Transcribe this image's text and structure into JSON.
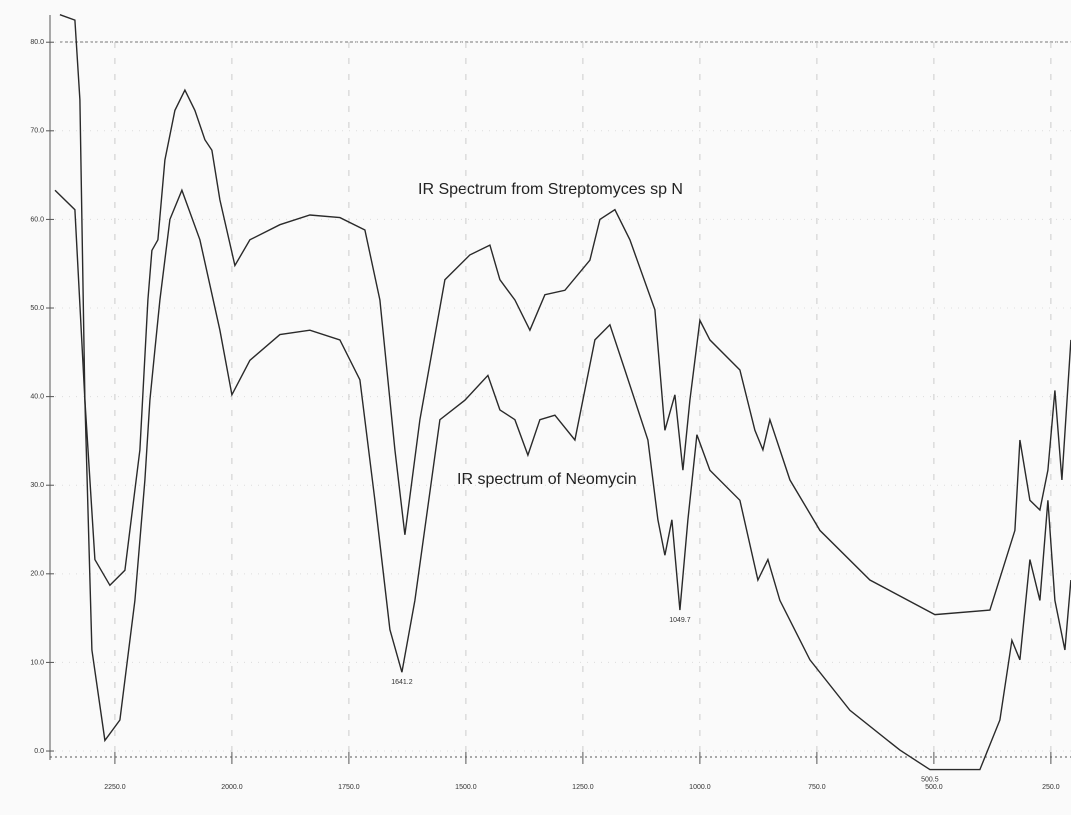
{
  "chart_data": {
    "type": "line",
    "annotations": [
      {
        "text": "IR Spectrum from Streptomyces sp N"
      },
      {
        "text": "IR spectrum of Neomycin"
      },
      {
        "text": "1641.2",
        "x": 1636.7,
        "y": 8.9
      },
      {
        "text": "1049.7",
        "x": 1042.7,
        "y": 15.9
      },
      {
        "text": "500.5",
        "x": 508.5,
        "y": -2.1
      }
    ],
    "xlim": [
      2378,
      207
    ],
    "ylim": [
      -3,
      83.5
    ],
    "xticks": [
      {
        "value": 2250,
        "label": "2250.0"
      },
      {
        "value": 2000,
        "label": "2000.0"
      },
      {
        "value": 1750,
        "label": "1750.0"
      },
      {
        "value": 1500,
        "label": "1500.0"
      },
      {
        "value": 1250,
        "label": "1250.0"
      },
      {
        "value": 1000,
        "label": "1000.0"
      },
      {
        "value": 750,
        "label": "750.0"
      },
      {
        "value": 500,
        "label": "500.0"
      },
      {
        "value": 250,
        "label": "250.0"
      }
    ],
    "yticks": [
      {
        "value": 0,
        "label": "0.0"
      },
      {
        "value": 10,
        "label": "10.0"
      },
      {
        "value": 20,
        "label": "20.0"
      },
      {
        "value": 30,
        "label": "30.0"
      },
      {
        "value": 40,
        "label": "40.0"
      },
      {
        "value": 50,
        "label": "50.0"
      },
      {
        "value": 60,
        "label": "60.0"
      },
      {
        "value": 70,
        "label": "70.0"
      },
      {
        "value": 80,
        "label": "80.0"
      }
    ],
    "grid": true,
    "color": "#2a2a2a",
    "series": [
      {
        "x": [
          2378,
          2335.5,
          2314.1,
          2292.7,
          2260.7,
          2228.6,
          2196.6,
          2179.5,
          2170.9,
          2158.1,
          2143.2,
          2121.8,
          2100.4,
          2079.1,
          2057.7,
          2042.7,
          2025.6,
          1993.6,
          1961.5,
          1897.4,
          1833.3,
          1769.2,
          1715.8,
          1683.8,
          1651.7,
          1630.3,
          1598.3,
          1544.9,
          1491.5,
          1448.7,
          1427.4,
          1395.3,
          1363.2,
          1331.2,
          1288.4,
          1235.0,
          1213.7,
          1181.6,
          1149.6,
          1096.2,
          1074.8,
          1053.4,
          1036.3,
          1021.4,
          1000,
          978.6,
          914.5,
          882.5,
          865.4,
          850.4,
          807.7,
          743.6,
          636.8,
          497.9,
          380.3,
          326.9,
          316.2,
          294.9,
          273.5,
          256.4,
          241.5,
          226.5,
          207.3
        ],
        "values": [
          63.3,
          61.1,
          39.6,
          21.6,
          18.7,
          20.4,
          34.0,
          50.9,
          56.5,
          57.7,
          66.7,
          72.3,
          74.6,
          72.3,
          69.0,
          67.8,
          62.2,
          54.8,
          57.7,
          59.4,
          60.5,
          60.2,
          58.8,
          50.9,
          34.0,
          24.4,
          37.4,
          53.2,
          56.0,
          57.1,
          53.2,
          50.9,
          47.5,
          51.5,
          52.0,
          55.4,
          60.0,
          61.1,
          57.7,
          49.8,
          36.2,
          40.2,
          31.7,
          39.6,
          48.6,
          46.4,
          43.0,
          36.2,
          34.0,
          37.4,
          30.6,
          24.9,
          19.3,
          15.4,
          15.9,
          24.9,
          35.1,
          28.3,
          27.2,
          31.7,
          40.7,
          30.6,
          46.4
        ]
      },
      {
        "x": [
          2367.5,
          2335.5,
          2324.8,
          2314.1,
          2299.1,
          2271.4,
          2239.3,
          2207.3,
          2185.9,
          2175.2,
          2164.5,
          2153.8,
          2132.5,
          2106.8,
          2068.4,
          2025.6,
          2000,
          1961.5,
          1897.4,
          1833.3,
          1769.2,
          1726.5,
          1694.4,
          1662.4,
          1636.7,
          1609.0,
          1555.6,
          1502.1,
          1453.0,
          1427.4,
          1395.3,
          1367.5,
          1341.9,
          1309.8,
          1267.1,
          1224.4,
          1192.3,
          1160.3,
          1111.1,
          1089.8,
          1074.8,
          1059.9,
          1042.7,
          1025.6,
          1006.4,
          978.6,
          914.5,
          876.1,
          854.7,
          829.1,
          765.0,
          679.5,
          572.6,
          508.5,
          401.7,
          359.0,
          333.3,
          316.2,
          294.9,
          273.5,
          256.4,
          241.5,
          220.1,
          207.3
        ],
        "values": [
          83.1,
          82.5,
          73.5,
          39.6,
          11.4,
          1.2,
          3.5,
          17.0,
          30.6,
          39.6,
          45.3,
          50.9,
          60.0,
          63.3,
          57.7,
          47.5,
          40.2,
          44.1,
          47.0,
          47.5,
          46.4,
          41.9,
          28.3,
          13.7,
          8.9,
          17.0,
          37.4,
          39.6,
          42.4,
          38.5,
          37.4,
          33.4,
          37.4,
          37.9,
          35.1,
          46.4,
          48.1,
          43.0,
          35.1,
          26.1,
          22.1,
          26.1,
          15.9,
          26.1,
          35.7,
          31.7,
          28.3,
          19.3,
          21.6,
          17.0,
          10.3,
          4.6,
          0.1,
          -2.1,
          -2.1,
          3.5,
          12.5,
          10.3,
          21.6,
          17.0,
          28.3,
          17.0,
          11.4,
          19.3
        ]
      }
    ]
  }
}
